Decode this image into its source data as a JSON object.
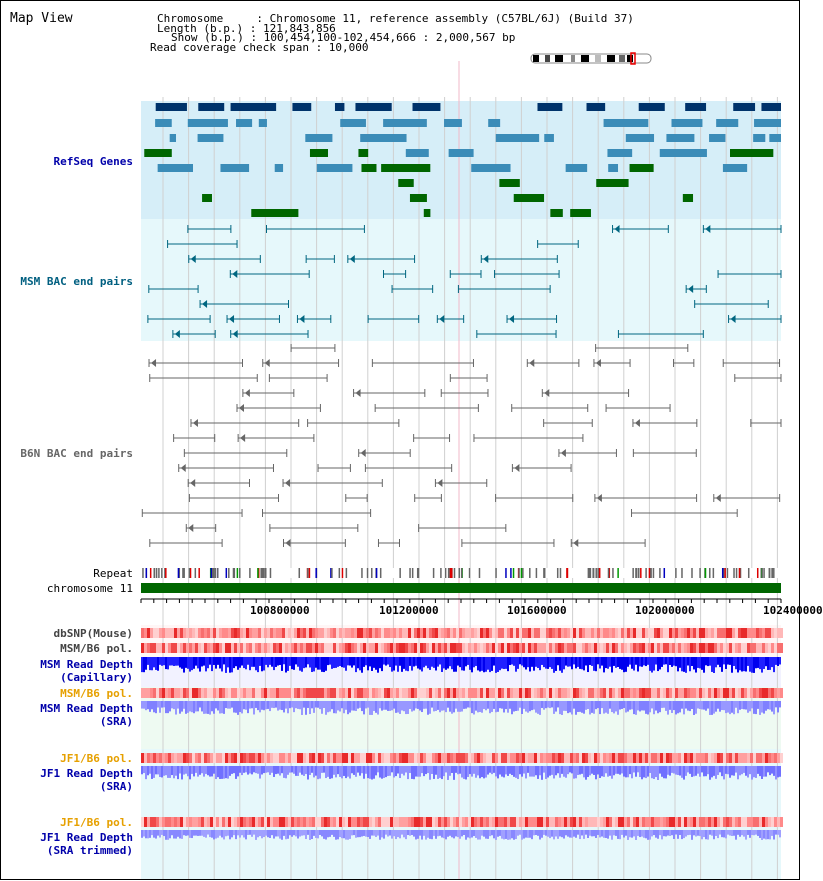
{
  "title": "Map View",
  "header": {
    "chromosome": "Chromosome     : Chromosome 11, reference assembly (C57BL/6J) (Build 37)",
    "length": "Length (b.p.) : 121,843,856",
    "show": "Show (b.p.) : 100,454,100-102,454,666 : 2,000,567 bp",
    "coverage": "Read coverage check span : 10,000"
  },
  "tracks": {
    "refseq": "RefSeq Genes",
    "msm_bac": "MSM BAC end pairs",
    "b6n_bac": "B6N BAC end pairs",
    "repeat": "Repeat",
    "chromosome": "chromosome 11",
    "dbsnp": "dbSNP(Mouse)",
    "msm_b6_pol_1": "MSM/B6 pol.",
    "msm_depth_cap_1": "MSM Read Depth",
    "msm_depth_cap_2": "(Capillary)",
    "msm_b6_pol_2": "MSM/B6 pol.",
    "msm_depth_sra_1": "MSM Read Depth",
    "msm_depth_sra_2": "(SRA)",
    "jf1_b6_pol_1": "JF1/B6 pol.",
    "jf1_depth_sra_1": "JF1 Read Depth",
    "jf1_depth_sra_2": "(SRA)",
    "jf1_b6_pol_2": "JF1/B6 pol.",
    "jf1_depth_trim_1": "JF1 Read Depth",
    "jf1_depth_trim_2": "(SRA trimmed)"
  },
  "axis": {
    "ticks": [
      "100800000",
      "101200000",
      "101600000",
      "102000000",
      "102400000"
    ]
  },
  "colors": {
    "gene_dark": "#00336b",
    "gene_mid": "#3b8cb8",
    "gene_green": "#006600",
    "msm_bac": "#006680",
    "b6n_bac": "#666666",
    "refseq_label": "#0000aa",
    "msm_label": "#005f80",
    "b6n_label": "#666666",
    "pol_label": "#e6a000",
    "depth_label": "#0000aa",
    "chrom_green": "#006600"
  }
}
